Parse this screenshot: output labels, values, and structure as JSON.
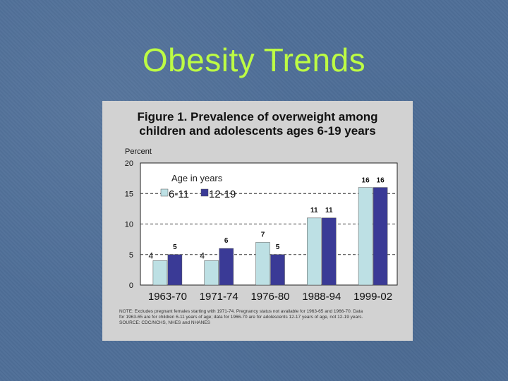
{
  "slide": {
    "title": "Obesity Trends"
  },
  "figure": {
    "title_line1": "Figure 1. Prevalence of overweight among",
    "title_line2": "children and adolescents ages 6-19 years",
    "note_line1": "NOTE: Excludes pregnant females starting with 1971-74. Pregnancy status not available for 1963-65 and 1966-70. Data",
    "note_line2": "for 1963-65 are for children 6-11 years of age; data for 1966-70 are for adolescents 12-17 years of age, not 12-19 years.",
    "note_line3": "SOURCE: CDC/NCHS, NHES and NHANES"
  },
  "chart_data": {
    "type": "bar",
    "title": "Figure 1. Prevalence of overweight among children and adolescents ages 6-19 years",
    "ylabel": "Percent",
    "xlabel": "",
    "ylim": [
      0,
      20
    ],
    "yticks": [
      "0",
      "5",
      "10",
      "15",
      "20"
    ],
    "grid": "dashed lines at 5, 10, 15",
    "legend_title": "Age in years",
    "legend_position": "top-left",
    "categories": [
      "1963-70",
      "1971-74",
      "1976-80",
      "1988-94",
      "1999-02"
    ],
    "series": [
      {
        "name": "6-11",
        "color": "#bde0e4",
        "values": [
          4,
          4,
          7,
          11,
          16
        ],
        "labels": [
          "4",
          "4",
          "7",
          "11",
          "16"
        ]
      },
      {
        "name": "12-19",
        "color": "#3a3a96",
        "values": [
          5,
          6,
          5,
          11,
          16
        ],
        "labels": [
          "5",
          "6",
          "5",
          "11",
          "16"
        ]
      }
    ]
  }
}
